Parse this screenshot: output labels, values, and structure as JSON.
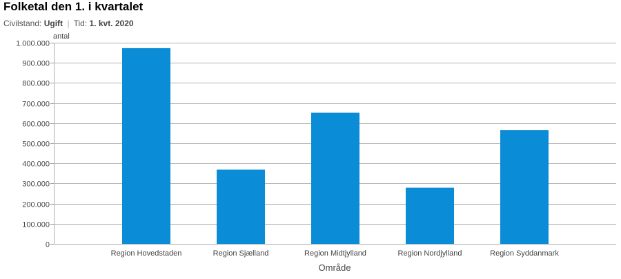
{
  "header": {
    "title": "Folketal den 1. i kvartalet",
    "filter1_label": "Civilstand:",
    "filter1_value": "Ugift",
    "separator": "|",
    "filter2_label": "Tid:",
    "filter2_value": "1. kvt. 2020"
  },
  "chart_data": {
    "type": "bar",
    "categories": [
      "Region Hovedstaden",
      "Region Sjælland",
      "Region Midtjylland",
      "Region Nordjylland",
      "Region Syddanmark"
    ],
    "values": [
      973000,
      369000,
      652000,
      279000,
      565000
    ],
    "xlabel": "Område",
    "ylabel": "antal",
    "ylim": [
      0,
      1000000
    ],
    "yticks": [
      0,
      100000,
      200000,
      300000,
      400000,
      500000,
      600000,
      700000,
      800000,
      900000,
      1000000
    ],
    "ytick_labels": [
      "0",
      "100.000",
      "200.000",
      "300.000",
      "400.000",
      "500.000",
      "600.000",
      "700.000",
      "800.000",
      "900.000",
      "1.000.000"
    ],
    "grid": true,
    "bar_color": "#0a8cd6",
    "grid_color": "#b0b0b0"
  }
}
